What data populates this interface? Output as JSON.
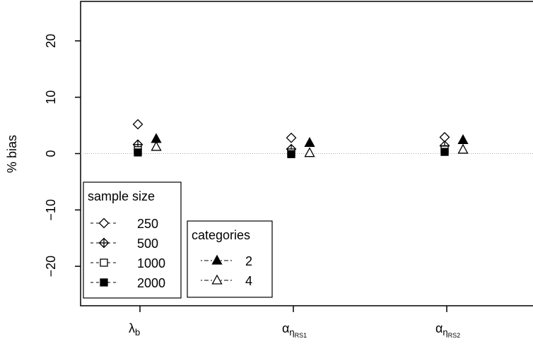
{
  "chart_data": {
    "type": "scatter",
    "ylabel": "% bias",
    "ylim": [
      -27,
      27
    ],
    "yticks": [
      -20,
      -10,
      0,
      10,
      20
    ],
    "reference_line": 0,
    "categories": [
      {
        "main": "λ",
        "sub": "b",
        "subsub": ""
      },
      {
        "main": "α",
        "sub": "η",
        "subsub": "RS1"
      },
      {
        "main": "α",
        "sub": "η",
        "subsub": "RS2"
      }
    ],
    "series": [
      {
        "name": "250",
        "group": "sample size",
        "marker": "diamond-open",
        "values": [
          5.2,
          2.8,
          2.9
        ]
      },
      {
        "name": "500",
        "group": "sample size",
        "marker": "diamond-plus",
        "values": [
          1.6,
          0.8,
          1.4
        ]
      },
      {
        "name": "1000",
        "group": "sample size",
        "marker": "square-open",
        "values": [
          0.6,
          0.2,
          0.7
        ]
      },
      {
        "name": "2000",
        "group": "sample size",
        "marker": "square-filled",
        "values": [
          0.2,
          -0.1,
          0.3
        ]
      },
      {
        "name": "2",
        "group": "categories",
        "marker": "triangle-filled",
        "values": [
          2.6,
          1.9,
          2.4
        ]
      },
      {
        "name": "4",
        "group": "categories",
        "marker": "triangle-open",
        "values": [
          1.2,
          0.1,
          0.7
        ]
      }
    ],
    "legends": [
      {
        "title": "sample size",
        "entries": [
          "250",
          "500",
          "1000",
          "2000"
        ]
      },
      {
        "title": "categories",
        "entries": [
          "2",
          "4"
        ]
      }
    ]
  }
}
